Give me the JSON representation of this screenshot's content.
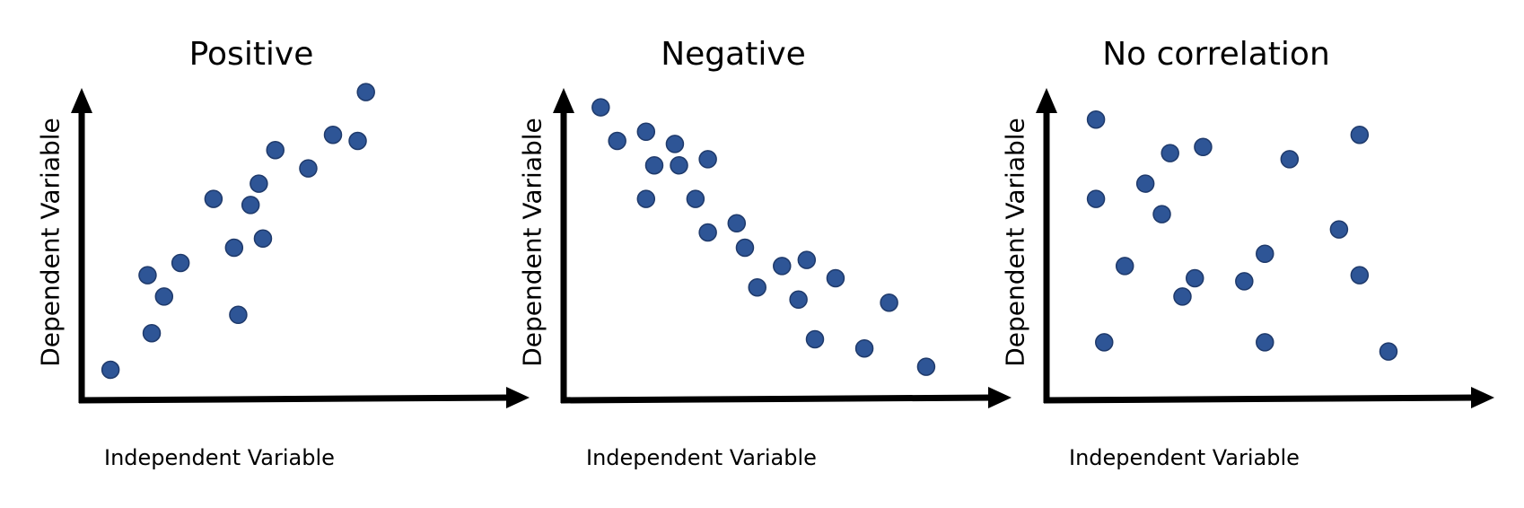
{
  "chart_data": [
    {
      "type": "scatter",
      "title": "Positive",
      "xlabel": "Independent Variable",
      "ylabel": "Dependent Variable",
      "xlim": [
        0,
        100
      ],
      "ylim": [
        0,
        100
      ],
      "grid": false,
      "point_color": "#2e5596",
      "points": [
        {
          "x": 7,
          "y": 10
        },
        {
          "x": 16,
          "y": 41
        },
        {
          "x": 17,
          "y": 22
        },
        {
          "x": 20,
          "y": 34
        },
        {
          "x": 24,
          "y": 45
        },
        {
          "x": 32,
          "y": 66
        },
        {
          "x": 37,
          "y": 50
        },
        {
          "x": 38,
          "y": 28
        },
        {
          "x": 41,
          "y": 64
        },
        {
          "x": 43,
          "y": 71
        },
        {
          "x": 44,
          "y": 53
        },
        {
          "x": 47,
          "y": 82
        },
        {
          "x": 55,
          "y": 76
        },
        {
          "x": 61,
          "y": 87
        },
        {
          "x": 67,
          "y": 85
        },
        {
          "x": 69,
          "y": 101
        }
      ]
    },
    {
      "type": "scatter",
      "title": "Negative",
      "xlabel": "Independent Variable",
      "ylabel": "Dependent Variable",
      "xlim": [
        0,
        100
      ],
      "ylim": [
        0,
        100
      ],
      "grid": false,
      "point_color": "#2e5596",
      "points": [
        {
          "x": 9,
          "y": 96
        },
        {
          "x": 13,
          "y": 85
        },
        {
          "x": 20,
          "y": 88
        },
        {
          "x": 22,
          "y": 77
        },
        {
          "x": 20,
          "y": 66
        },
        {
          "x": 27,
          "y": 84
        },
        {
          "x": 28,
          "y": 77
        },
        {
          "x": 32,
          "y": 66
        },
        {
          "x": 35,
          "y": 79
        },
        {
          "x": 35,
          "y": 55
        },
        {
          "x": 42,
          "y": 58
        },
        {
          "x": 44,
          "y": 50
        },
        {
          "x": 47,
          "y": 37
        },
        {
          "x": 53,
          "y": 44
        },
        {
          "x": 57,
          "y": 33
        },
        {
          "x": 59,
          "y": 46
        },
        {
          "x": 61,
          "y": 20
        },
        {
          "x": 66,
          "y": 40
        },
        {
          "x": 73,
          "y": 17
        },
        {
          "x": 79,
          "y": 32
        },
        {
          "x": 88,
          "y": 11
        }
      ]
    },
    {
      "type": "scatter",
      "title": "No correlation",
      "xlabel": "Independent Variable",
      "ylabel": "Dependent Variable",
      "xlim": [
        0,
        100
      ],
      "ylim": [
        0,
        100
      ],
      "grid": false,
      "point_color": "#2e5596",
      "points": [
        {
          "x": 12,
          "y": 92
        },
        {
          "x": 12,
          "y": 66
        },
        {
          "x": 14,
          "y": 19
        },
        {
          "x": 19,
          "y": 44
        },
        {
          "x": 24,
          "y": 71
        },
        {
          "x": 28,
          "y": 61
        },
        {
          "x": 30,
          "y": 81
        },
        {
          "x": 33,
          "y": 34
        },
        {
          "x": 36,
          "y": 40
        },
        {
          "x": 38,
          "y": 83
        },
        {
          "x": 48,
          "y": 39
        },
        {
          "x": 53,
          "y": 48
        },
        {
          "x": 53,
          "y": 19
        },
        {
          "x": 59,
          "y": 79
        },
        {
          "x": 71,
          "y": 56
        },
        {
          "x": 76,
          "y": 87
        },
        {
          "x": 76,
          "y": 41
        },
        {
          "x": 83,
          "y": 16
        }
      ]
    }
  ]
}
